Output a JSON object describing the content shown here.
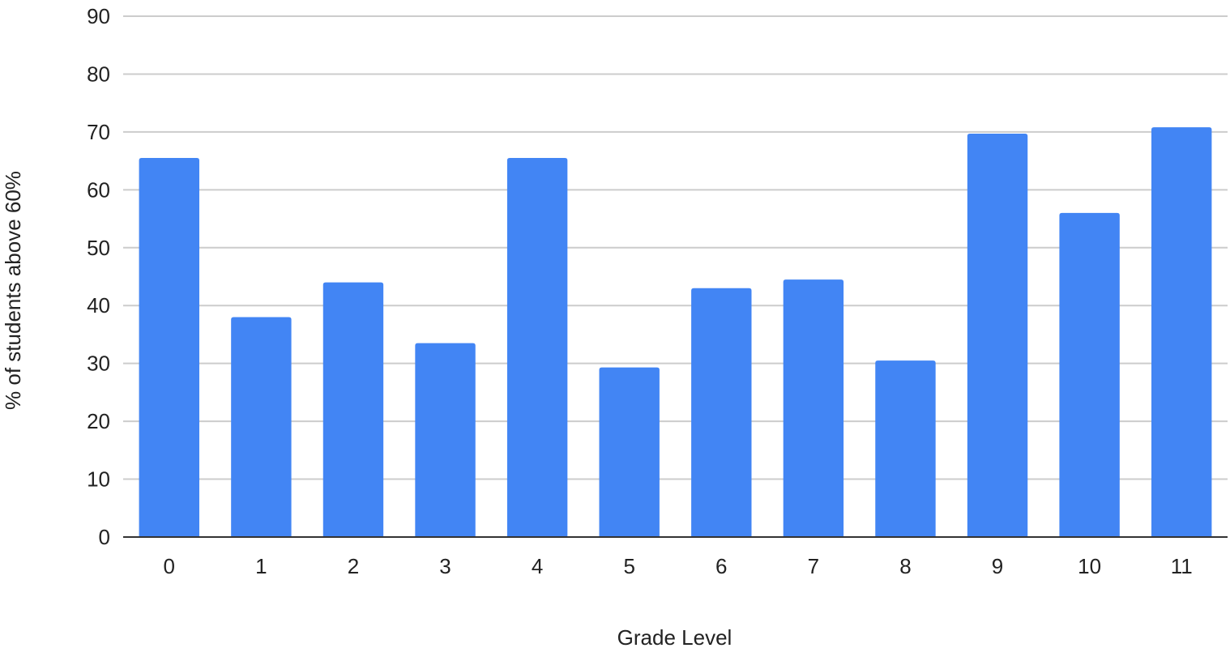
{
  "colors": {
    "bar": "#4285f4",
    "grid": "#cccccc",
    "axis": "#333333",
    "text": "#222222"
  },
  "chart_data": {
    "type": "bar",
    "title": "",
    "xlabel": "Grade Level",
    "ylabel": "% of students above 60%",
    "categories": [
      "0",
      "1",
      "2",
      "3",
      "4",
      "5",
      "6",
      "7",
      "8",
      "9",
      "10",
      "11"
    ],
    "values": [
      65.5,
      38.0,
      44.0,
      33.5,
      65.5,
      29.3,
      43.0,
      44.5,
      30.5,
      69.7,
      56.0,
      70.8
    ],
    "ylim": [
      0,
      90
    ],
    "yticks": [
      "0",
      "10",
      "20",
      "30",
      "40",
      "50",
      "60",
      "70",
      "80",
      "90"
    ],
    "grid": true,
    "legend": "none"
  }
}
